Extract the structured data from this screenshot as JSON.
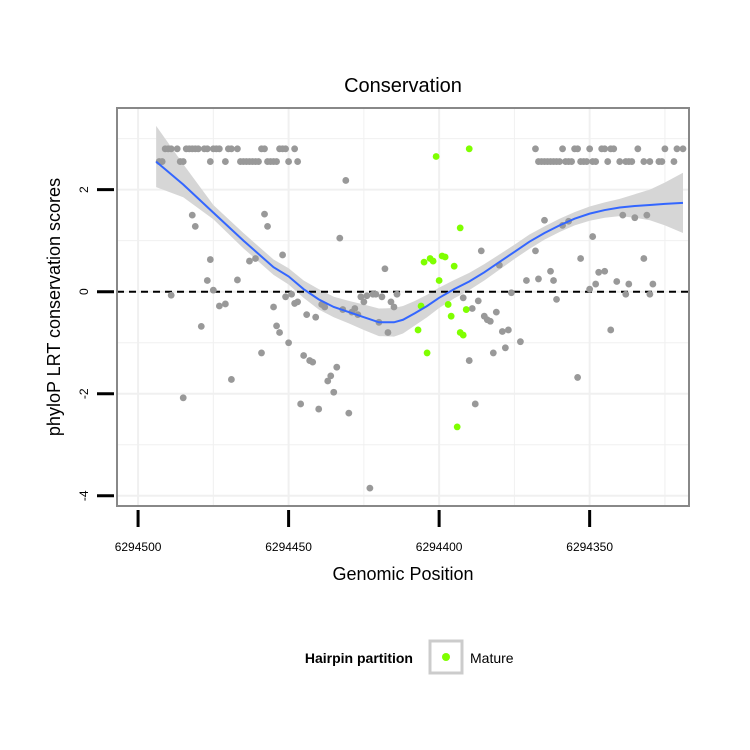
{
  "chart_data": {
    "type": "scatter",
    "title": "Conservation",
    "xlabel": "Genomic Position",
    "ylabel": "phyloP LRT conservation scores",
    "x_reversed": true,
    "xlim": [
      6294507,
      6294317
    ],
    "ylim": [
      -4.2,
      3.6
    ],
    "x_ticks": [
      6294500,
      6294450,
      6294400,
      6294350
    ],
    "x_tick_labels": [
      "6294500",
      "6294450",
      "6294400",
      "6294350"
    ],
    "y_ticks": [
      -4,
      -2,
      0,
      2
    ],
    "y_tick_labels": [
      "-4",
      "-2",
      "0",
      "2"
    ],
    "grid": true,
    "reference_line": {
      "y": 0,
      "style": "dashed",
      "color": "#000000"
    },
    "colors": {
      "other": "#999999",
      "mature": "#7FFF00",
      "smooth": "#3366FF",
      "ribbon": "#d6d6d6",
      "panel_border": "#888888",
      "grid": "#f0f0f0"
    },
    "legend": {
      "title": "Hairpin partition",
      "position": "bottom",
      "entries": [
        {
          "label": "Mature",
          "color": "#7FFF00"
        }
      ]
    },
    "series": [
      {
        "type": "points",
        "color": "#999999",
        "points": [
          [
            6294493,
            2.55
          ],
          [
            6294492,
            2.55
          ],
          [
            6294491,
            2.8
          ],
          [
            6294490,
            2.8
          ],
          [
            6294489,
            2.8
          ],
          [
            6294487,
            2.8
          ],
          [
            6294486,
            2.55
          ],
          [
            6294485,
            2.55
          ],
          [
            6294484,
            2.8
          ],
          [
            6294483,
            2.8
          ],
          [
            6294482,
            2.8
          ],
          [
            6294481,
            2.8
          ],
          [
            6294480,
            2.8
          ],
          [
            6294478,
            2.8
          ],
          [
            6294477,
            2.8
          ],
          [
            6294476,
            2.55
          ],
          [
            6294475,
            2.8
          ],
          [
            6294474,
            2.8
          ],
          [
            6294473,
            2.8
          ],
          [
            6294471,
            2.55
          ],
          [
            6294470,
            2.8
          ],
          [
            6294469,
            2.8
          ],
          [
            6294467,
            2.8
          ],
          [
            6294466,
            2.55
          ],
          [
            6294465,
            2.55
          ],
          [
            6294464,
            2.55
          ],
          [
            6294463,
            2.55
          ],
          [
            6294462,
            2.55
          ],
          [
            6294461,
            2.55
          ],
          [
            6294460,
            2.55
          ],
          [
            6294459,
            2.8
          ],
          [
            6294458,
            2.8
          ],
          [
            6294457,
            2.55
          ],
          [
            6294456,
            2.55
          ],
          [
            6294455,
            2.55
          ],
          [
            6294454,
            2.55
          ],
          [
            6294453,
            2.8
          ],
          [
            6294452,
            2.8
          ],
          [
            6294451,
            2.8
          ],
          [
            6294450,
            2.55
          ],
          [
            6294448,
            2.8
          ],
          [
            6294447,
            2.55
          ],
          [
            6294368,
            2.8
          ],
          [
            6294367,
            2.55
          ],
          [
            6294366,
            2.55
          ],
          [
            6294365,
            2.55
          ],
          [
            6294364,
            2.55
          ],
          [
            6294363,
            2.55
          ],
          [
            6294362,
            2.55
          ],
          [
            6294361,
            2.55
          ],
          [
            6294360,
            2.55
          ],
          [
            6294359,
            2.8
          ],
          [
            6294358,
            2.55
          ],
          [
            6294357,
            2.55
          ],
          [
            6294356,
            2.55
          ],
          [
            6294355,
            2.8
          ],
          [
            6294354,
            2.8
          ],
          [
            6294353,
            2.55
          ],
          [
            6294352,
            2.55
          ],
          [
            6294351,
            2.55
          ],
          [
            6294350,
            2.8
          ],
          [
            6294349,
            2.55
          ],
          [
            6294348,
            2.55
          ],
          [
            6294346,
            2.8
          ],
          [
            6294345,
            2.8
          ],
          [
            6294344,
            2.55
          ],
          [
            6294343,
            2.8
          ],
          [
            6294342,
            2.8
          ],
          [
            6294340,
            2.55
          ],
          [
            6294338,
            2.55
          ],
          [
            6294337,
            2.55
          ],
          [
            6294336,
            2.55
          ],
          [
            6294334,
            2.8
          ],
          [
            6294332,
            2.55
          ],
          [
            6294330,
            2.55
          ],
          [
            6294327,
            2.55
          ],
          [
            6294326,
            2.55
          ],
          [
            6294325,
            2.8
          ],
          [
            6294322,
            2.55
          ],
          [
            6294321,
            2.8
          ],
          [
            6294319,
            2.8
          ],
          [
            6294489,
            -0.07
          ],
          [
            6294485,
            -2.08
          ],
          [
            6294482,
            1.5
          ],
          [
            6294481,
            1.28
          ],
          [
            6294479,
            -0.68
          ],
          [
            6294477,
            0.22
          ],
          [
            6294476,
            0.63
          ],
          [
            6294475,
            0.03
          ],
          [
            6294473,
            -0.28
          ],
          [
            6294471,
            -0.24
          ],
          [
            6294469,
            -1.72
          ],
          [
            6294467,
            0.23
          ],
          [
            6294463,
            0.6
          ],
          [
            6294461,
            0.65
          ],
          [
            6294459,
            -1.2
          ],
          [
            6294458,
            1.52
          ],
          [
            6294457,
            1.28
          ],
          [
            6294455,
            -0.3
          ],
          [
            6294454,
            -0.67
          ],
          [
            6294453,
            -0.8
          ],
          [
            6294452,
            0.72
          ],
          [
            6294451,
            -0.1
          ],
          [
            6294450,
            -1.0
          ],
          [
            6294449,
            -0.05
          ],
          [
            6294448,
            -0.23
          ],
          [
            6294447,
            -0.2
          ],
          [
            6294446,
            -2.2
          ],
          [
            6294445,
            -1.25
          ],
          [
            6294444,
            -0.45
          ],
          [
            6294443,
            -1.35
          ],
          [
            6294442,
            -1.38
          ],
          [
            6294441,
            -0.5
          ],
          [
            6294440,
            -2.3
          ],
          [
            6294439,
            -0.25
          ],
          [
            6294438,
            -0.3
          ],
          [
            6294437,
            -1.75
          ],
          [
            6294436,
            -1.65
          ],
          [
            6294435,
            -1.97
          ],
          [
            6294434,
            -1.48
          ],
          [
            6294433,
            1.05
          ],
          [
            6294432,
            -0.35
          ],
          [
            6294431,
            2.18
          ],
          [
            6294430,
            -2.38
          ],
          [
            6294429,
            -0.4
          ],
          [
            6294428,
            -0.33
          ],
          [
            6294427,
            -0.45
          ],
          [
            6294426,
            -0.1
          ],
          [
            6294425,
            -0.2
          ],
          [
            6294424,
            -0.08
          ],
          [
            6294423,
            -3.85
          ],
          [
            6294422,
            -0.05
          ],
          [
            6294421,
            -0.05
          ],
          [
            6294420,
            -0.6
          ],
          [
            6294419,
            -0.1
          ],
          [
            6294418,
            0.45
          ],
          [
            6294417,
            -0.8
          ],
          [
            6294416,
            -0.2
          ],
          [
            6294415,
            -0.3
          ],
          [
            6294414,
            -0.05
          ],
          [
            6294392,
            -0.12
          ],
          [
            6294390,
            -1.35
          ],
          [
            6294389,
            -0.33
          ],
          [
            6294388,
            -2.2
          ],
          [
            6294387,
            -0.18
          ],
          [
            6294386,
            0.8
          ],
          [
            6294385,
            -0.48
          ],
          [
            6294384,
            -0.55
          ],
          [
            6294383,
            -0.58
          ],
          [
            6294382,
            -1.2
          ],
          [
            6294381,
            -0.4
          ],
          [
            6294380,
            0.52
          ],
          [
            6294379,
            -0.78
          ],
          [
            6294378,
            -1.1
          ],
          [
            6294377,
            -0.75
          ],
          [
            6294376,
            -0.02
          ],
          [
            6294373,
            -0.98
          ],
          [
            6294371,
            0.22
          ],
          [
            6294368,
            0.8
          ],
          [
            6294367,
            0.25
          ],
          [
            6294365,
            1.4
          ],
          [
            6294363,
            0.4
          ],
          [
            6294362,
            0.22
          ],
          [
            6294361,
            -0.15
          ],
          [
            6294359,
            1.3
          ],
          [
            6294357,
            1.38
          ],
          [
            6294354,
            -1.68
          ],
          [
            6294353,
            0.65
          ],
          [
            6294350,
            0.05
          ],
          [
            6294349,
            1.08
          ],
          [
            6294348,
            0.15
          ],
          [
            6294347,
            0.38
          ],
          [
            6294345,
            0.4
          ],
          [
            6294343,
            -0.75
          ],
          [
            6294341,
            0.2
          ],
          [
            6294339,
            1.5
          ],
          [
            6294338,
            -0.05
          ],
          [
            6294337,
            0.15
          ],
          [
            6294335,
            1.45
          ],
          [
            6294332,
            0.65
          ],
          [
            6294331,
            1.5
          ],
          [
            6294330,
            -0.05
          ],
          [
            6294329,
            0.15
          ]
        ]
      },
      {
        "type": "points",
        "name": "Mature",
        "color": "#7FFF00",
        "points": [
          [
            6294407,
            -0.75
          ],
          [
            6294406,
            -0.28
          ],
          [
            6294405,
            0.58
          ],
          [
            6294404,
            -1.2
          ],
          [
            6294403,
            0.65
          ],
          [
            6294402,
            0.6
          ],
          [
            6294401,
            2.65
          ],
          [
            6294400,
            0.22
          ],
          [
            6294399,
            0.7
          ],
          [
            6294398,
            0.68
          ],
          [
            6294397,
            -0.25
          ],
          [
            6294396,
            -0.48
          ],
          [
            6294395,
            0.5
          ],
          [
            6294394,
            -2.65
          ],
          [
            6294393,
            -0.8
          ],
          [
            6294393,
            1.25
          ],
          [
            6294392,
            -0.85
          ],
          [
            6294391,
            -0.35
          ],
          [
            6294390,
            2.8
          ]
        ]
      },
      {
        "type": "smooth",
        "color": "#3366FF",
        "points": [
          [
            6294494,
            2.55
          ],
          [
            6294485,
            2.1
          ],
          [
            6294475,
            1.55
          ],
          [
            6294465,
            1.0
          ],
          [
            6294455,
            0.48
          ],
          [
            6294450,
            0.3
          ],
          [
            6294445,
            0.05
          ],
          [
            6294440,
            -0.15
          ],
          [
            6294435,
            -0.3
          ],
          [
            6294430,
            -0.4
          ],
          [
            6294425,
            -0.5
          ],
          [
            6294420,
            -0.6
          ],
          [
            6294415,
            -0.6
          ],
          [
            6294412,
            -0.55
          ],
          [
            6294408,
            -0.42
          ],
          [
            6294404,
            -0.28
          ],
          [
            6294400,
            -0.12
          ],
          [
            6294395,
            0.05
          ],
          [
            6294390,
            0.2
          ],
          [
            6294385,
            0.38
          ],
          [
            6294380,
            0.58
          ],
          [
            6294375,
            0.78
          ],
          [
            6294370,
            0.98
          ],
          [
            6294365,
            1.15
          ],
          [
            6294360,
            1.3
          ],
          [
            6294355,
            1.43
          ],
          [
            6294350,
            1.53
          ],
          [
            6294345,
            1.6
          ],
          [
            6294340,
            1.65
          ],
          [
            6294335,
            1.68
          ],
          [
            6294330,
            1.7
          ],
          [
            6294325,
            1.72
          ],
          [
            6294319,
            1.74
          ]
        ],
        "ribbon_lower": [
          2.05,
          1.85,
          1.42,
          0.85,
          0.33,
          0.14,
          -0.12,
          -0.35,
          -0.5,
          -0.62,
          -0.75,
          -0.87,
          -0.88,
          -0.82,
          -0.66,
          -0.5,
          -0.32,
          -0.13,
          0.03,
          0.22,
          0.43,
          0.64,
          0.84,
          1.02,
          1.17,
          1.3,
          1.39,
          1.45,
          1.48,
          1.45,
          1.4,
          1.3,
          1.15
        ],
        "ribbon_upper": [
          3.25,
          2.5,
          1.7,
          1.15,
          0.63,
          0.46,
          0.22,
          0.05,
          -0.1,
          -0.18,
          -0.25,
          -0.33,
          -0.32,
          -0.28,
          -0.18,
          -0.06,
          0.08,
          0.23,
          0.37,
          0.54,
          0.73,
          0.92,
          1.12,
          1.28,
          1.43,
          1.56,
          1.67,
          1.75,
          1.82,
          1.91,
          2.0,
          2.14,
          2.33
        ]
      }
    ]
  }
}
